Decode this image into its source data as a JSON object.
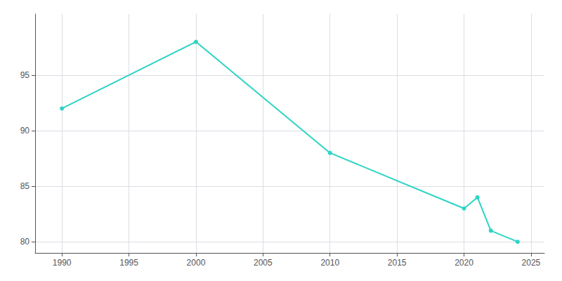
{
  "chart_data": {
    "type": "line",
    "x": [
      1990,
      2000,
      2010,
      2020,
      2021,
      2022,
      2024
    ],
    "values": [
      92,
      98,
      88,
      83,
      84,
      81,
      80
    ],
    "color": "#2dd4c4",
    "marker": "circle",
    "xlim": [
      1988,
      2026
    ],
    "ylim": [
      79,
      100.5
    ],
    "xticks": [
      1990,
      1995,
      2000,
      2005,
      2010,
      2015,
      2020,
      2025
    ],
    "yticks": [
      80,
      85,
      90,
      95
    ],
    "grid": true
  }
}
